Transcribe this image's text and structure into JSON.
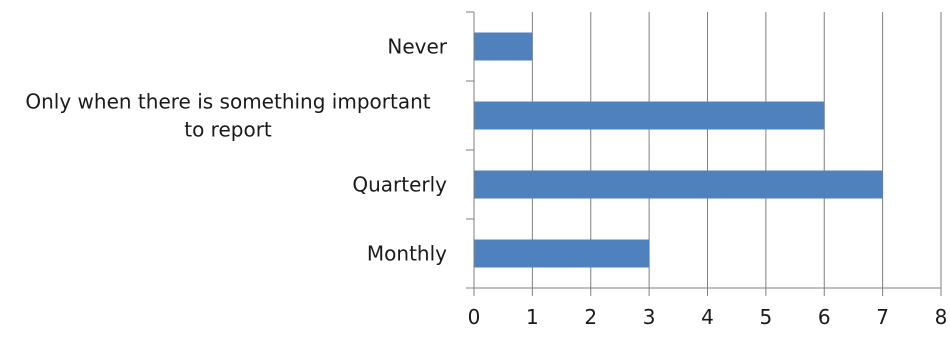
{
  "chart_data": {
    "type": "bar",
    "orientation": "horizontal",
    "categories": [
      "Never",
      "Only when there is something important to report",
      "Quarterly",
      "Monthly"
    ],
    "category_label_lines": [
      [
        "Never"
      ],
      [
        "Only when there is something important",
        "to report"
      ],
      [
        "Quarterly"
      ],
      [
        "Monthly"
      ]
    ],
    "values": [
      1,
      6,
      7,
      3
    ],
    "xlim": [
      0,
      8
    ],
    "x_ticks": [
      "0",
      "1",
      "2",
      "3",
      "4",
      "5",
      "6",
      "7",
      "8"
    ],
    "title": "",
    "xlabel": "",
    "ylabel": "",
    "grid": "vertical",
    "legend": "none",
    "bar_color": "#4f81bd",
    "gridline_color": "#7f7f7f"
  }
}
